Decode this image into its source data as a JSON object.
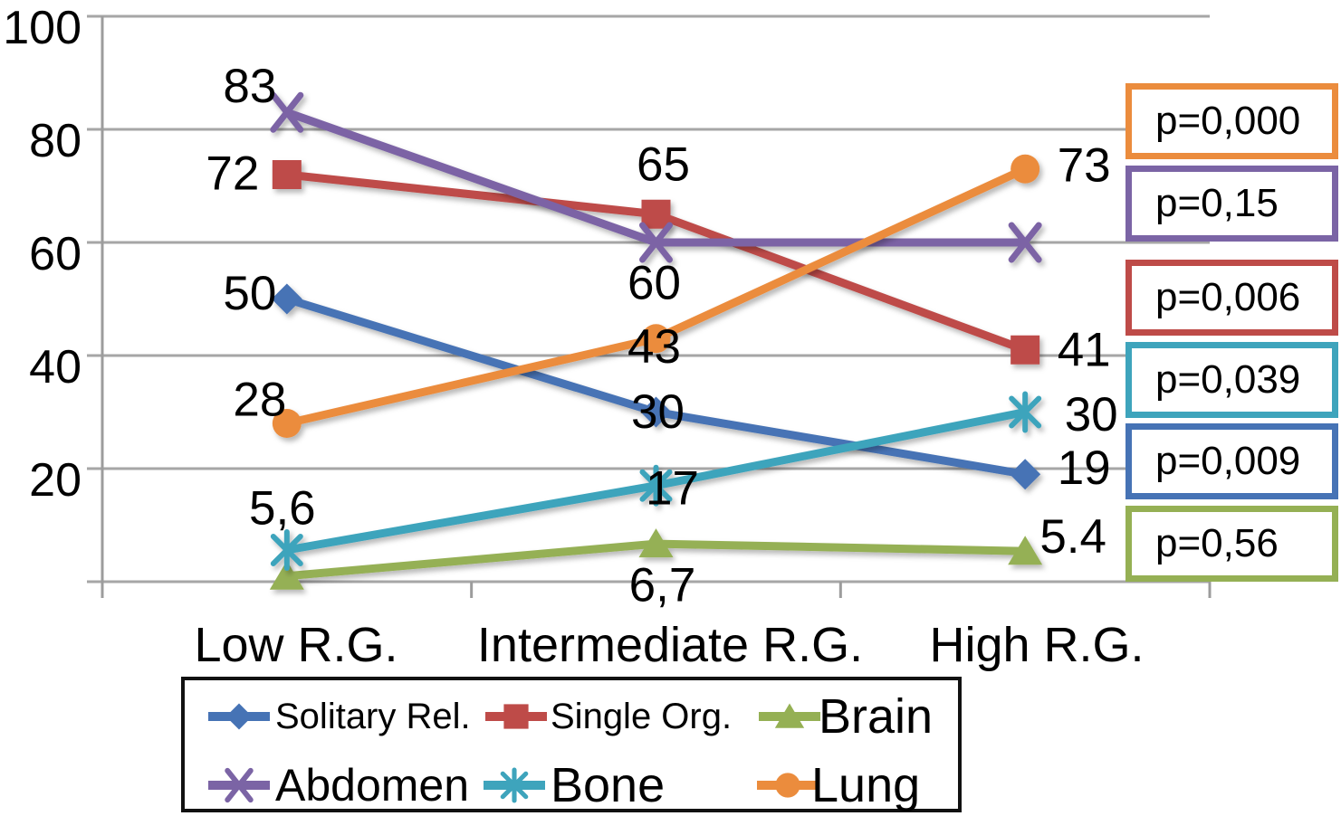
{
  "chart_data": {
    "type": "line",
    "title": "",
    "categories": [
      "Low R.G.",
      "Intermediate R.G.",
      "High R.G."
    ],
    "y_axis": {
      "min": 0,
      "max": 100,
      "ticks": [
        100,
        80,
        60,
        40,
        20
      ],
      "gridlines": true
    },
    "series": [
      {
        "name": "Solitary Rel.",
        "marker": "diamond",
        "color": "#4673B5",
        "values": [
          50,
          30,
          19
        ],
        "labels": [
          "50",
          "30",
          "19"
        ],
        "p_value": "p=0,009"
      },
      {
        "name": "Single Org.",
        "marker": "square",
        "color": "#BE4B48",
        "values": [
          72,
          65,
          41
        ],
        "labels": [
          "72",
          "65",
          "41"
        ],
        "p_value": "p=0,006"
      },
      {
        "name": "Brain",
        "marker": "triangle",
        "color": "#95B054",
        "values": [
          1,
          6.7,
          5.4
        ],
        "labels": [
          "",
          "6,7",
          "5.4"
        ],
        "p_value": "p=0,56"
      },
      {
        "name": "Abdomen",
        "marker": "x",
        "color": "#7B64A5",
        "values": [
          83,
          60,
          60
        ],
        "labels": [
          "83",
          "60",
          ""
        ],
        "p_value": "p=0,15"
      },
      {
        "name": "Bone",
        "marker": "asterisk",
        "color": "#3EA4BC",
        "values": [
          5.6,
          17,
          30
        ],
        "labels": [
          "5,6",
          "17",
          "30"
        ],
        "p_value": "p=0,039"
      },
      {
        "name": "Lung",
        "marker": "circle",
        "color": "#EB8C3D",
        "values": [
          28,
          43,
          73
        ],
        "labels": [
          "28",
          "43",
          "73"
        ],
        "p_value": "p=0,000"
      }
    ],
    "p_boxes": [
      {
        "label": "p=0,000",
        "series": "Lung",
        "color": "#EB8C3D"
      },
      {
        "label": "p=0,15",
        "series": "Abdomen",
        "color": "#7B64A5"
      },
      {
        "label": "p=0,006",
        "series": "Single Org.",
        "color": "#BE4B48"
      },
      {
        "label": "p=0,039",
        "series": "Bone",
        "color": "#3EA4BC"
      },
      {
        "label": "p=0,009",
        "series": "Solitary Rel.",
        "color": "#4673B5"
      },
      {
        "label": "p=0,56",
        "series": "Brain",
        "color": "#95B054"
      }
    ],
    "legend": {
      "position": "bottom",
      "rows": [
        [
          "Solitary Rel.",
          "Single Org.",
          "Brain"
        ],
        [
          "Abdomen",
          "Bone",
          "Lung"
        ]
      ]
    }
  },
  "colors": {
    "gridline": "#A6A6A6",
    "axis": "#9C9C9C",
    "legend_border": "#111111",
    "background": "#FFFFFF",
    "label_text": "#000000"
  }
}
